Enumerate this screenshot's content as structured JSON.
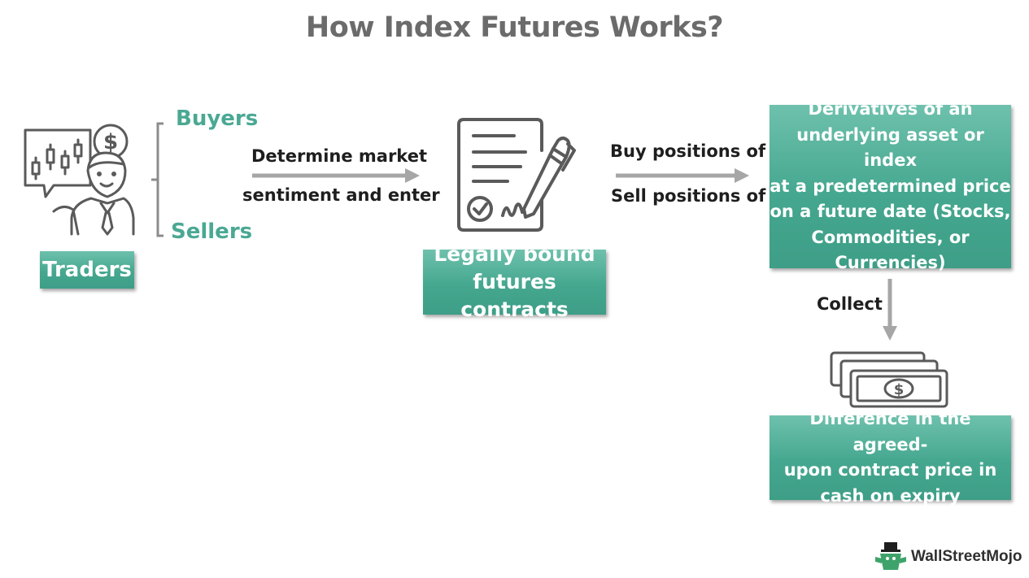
{
  "title": "How Index Futures Works?",
  "colors": {
    "box_green": "#45a78f",
    "teal_text": "#4aa893",
    "arrow_gray": "#a6a6a6",
    "icon_gray": "#5a5a5a",
    "title_gray": "#6b6b6b"
  },
  "traders": {
    "label": "Traders",
    "icon": "trader-icon",
    "buyers": "Buyers",
    "sellers": "Sellers"
  },
  "arrow1": {
    "top_text": "Determine market",
    "bottom_text": "sentiment and enter"
  },
  "contract": {
    "icon": "contract-signing-icon",
    "label_line1": "Legally bound",
    "label_line2": "futures contracts"
  },
  "arrow2": {
    "top_text": "Buy positions of",
    "bottom_text": "Sell positions of"
  },
  "derivatives": {
    "lines": [
      "Derivatives of an",
      "underlying asset or index",
      "at a predetermined price",
      "on a future date (Stocks,",
      "Commodities, or",
      "Currencies)"
    ]
  },
  "arrow3": {
    "text": "Collect"
  },
  "cash": {
    "icon": "cash-bills-icon",
    "lines": [
      "Difference in the agreed-",
      "upon contract price in",
      "cash on expiry"
    ]
  },
  "logo": {
    "text": "WallStreetMojo"
  }
}
